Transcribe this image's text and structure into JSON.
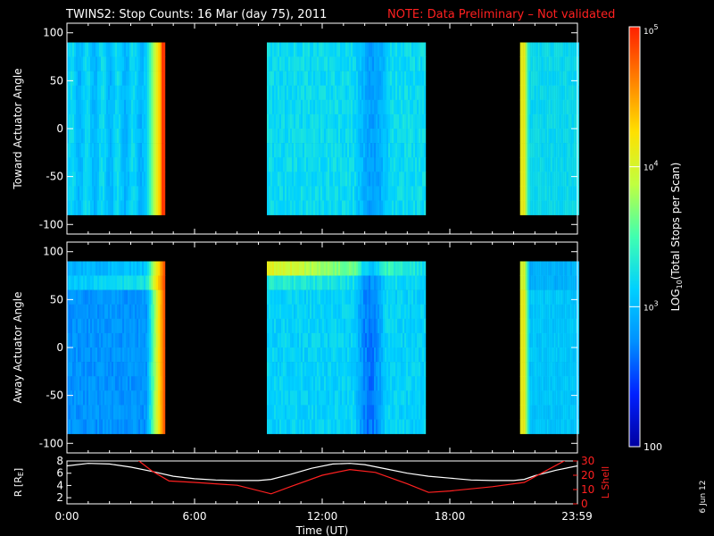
{
  "title": {
    "main": "TWINS2: Stop Counts: 16 Mar (day  75), 2011",
    "note": "NOTE: Data Preliminary – Not validated",
    "note_color": "#ff2020"
  },
  "date_stamp": "6 Jun 12",
  "chart_data": [
    {
      "type": "heatmap",
      "ylabel": "Toward Actuator Angle",
      "ylim": [
        -110,
        110
      ],
      "yticks": [
        100,
        50,
        0,
        -50,
        -100
      ],
      "data_ylim": [
        -90,
        90
      ],
      "xlim": [
        0,
        24
      ],
      "segments": [
        {
          "start": 0.0,
          "end": 4.6,
          "profile": "toward_1"
        },
        {
          "start": 9.4,
          "end": 16.8,
          "profile": "toward_2"
        },
        {
          "start": 21.3,
          "end": 24.0,
          "profile": "toward_3"
        }
      ]
    },
    {
      "type": "heatmap",
      "ylabel": "Away Actuator Angle",
      "ylim": [
        -110,
        110
      ],
      "yticks": [
        100,
        50,
        0,
        -50,
        -100
      ],
      "data_ylim": [
        -90,
        90
      ],
      "xlim": [
        0,
        24
      ],
      "segments": [
        {
          "start": 0.0,
          "end": 4.6,
          "profile": "away_1"
        },
        {
          "start": 9.4,
          "end": 16.8,
          "profile": "away_2"
        },
        {
          "start": 21.3,
          "end": 24.0,
          "profile": "away_3"
        }
      ]
    },
    {
      "type": "line",
      "ylabel_left": "R [R",
      "ylabel_left_sub": "E",
      "ylabel_left_end": "]",
      "ylabel_right": "L Shell",
      "ylim_left": [
        1,
        8
      ],
      "yticks_left": [
        8,
        6,
        4,
        2
      ],
      "ylim_right": [
        0,
        30
      ],
      "yticks_right": [
        30,
        20,
        10,
        0
      ],
      "xlim": [
        0,
        24
      ],
      "xticks": [
        "0:00",
        "6:00",
        "12:00",
        "18:00",
        "23:59"
      ],
      "xtick_values": [
        0,
        6,
        12,
        18,
        23.98
      ],
      "xlabel": "Time (UT)",
      "series": [
        {
          "color": "#ffffff",
          "axis": "left",
          "x": [
            0,
            1,
            2,
            3,
            4,
            5,
            6,
            7,
            8,
            9,
            9.6,
            10.5,
            11.5,
            12.5,
            13.3,
            14,
            15,
            16,
            17,
            18,
            19,
            20,
            21,
            21.5,
            22,
            23,
            24
          ],
          "y": [
            7.2,
            7.6,
            7.5,
            7.0,
            6.3,
            5.5,
            5.1,
            4.9,
            4.8,
            4.8,
            5.0,
            5.8,
            6.8,
            7.5,
            7.6,
            7.4,
            6.7,
            6.0,
            5.5,
            5.2,
            4.9,
            4.8,
            4.8,
            5.0,
            5.6,
            6.5,
            7.2
          ]
        },
        {
          "color": "#ff2020",
          "axis": "right",
          "x": [
            3.3,
            4.0,
            4.8,
            6,
            8,
            9.6,
            10.5,
            12,
            13.3,
            14.5,
            16,
            17,
            18,
            20,
            21.5,
            22.5,
            23.5
          ],
          "y": [
            31,
            23,
            16,
            15,
            13,
            7,
            12,
            20,
            24,
            22,
            14,
            8,
            9,
            12,
            15,
            23,
            31
          ]
        }
      ]
    }
  ],
  "colorbar": {
    "label": "LOG",
    "label_sub": "10",
    "label_end": "(Total Stops per Scan)",
    "tick_base": "10",
    "ticks": [
      {
        "value": 100,
        "base": "",
        "exp": "",
        "text": "100"
      },
      {
        "value": 1000,
        "base": "10",
        "exp": "3",
        "text": ""
      },
      {
        "value": 10000,
        "base": "10",
        "exp": "4",
        "text": ""
      },
      {
        "value": 100000,
        "base": "10",
        "exp": "5",
        "text": ""
      }
    ],
    "min": 100,
    "max": 100000,
    "scale": "log",
    "colors": [
      "#0000a0",
      "#0020ff",
      "#0090ff",
      "#00d0ff",
      "#40ffb0",
      "#c0ff40",
      "#ffe000",
      "#ff8000",
      "#ff2000"
    ]
  }
}
